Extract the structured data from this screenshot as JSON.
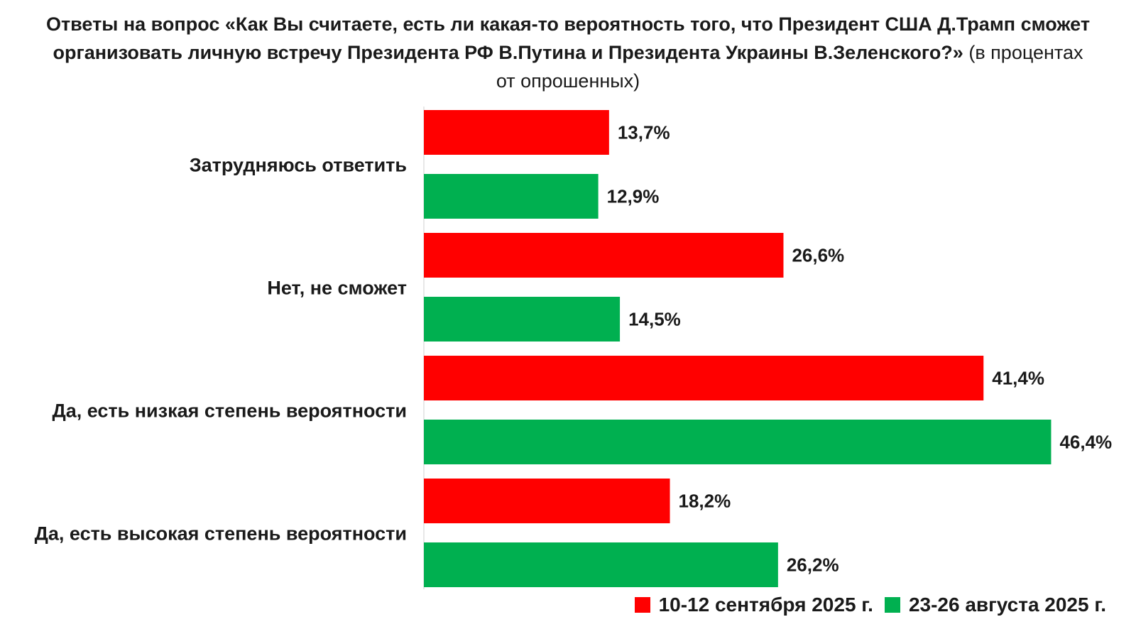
{
  "chart_data": {
    "type": "bar",
    "orientation": "horizontal",
    "title": "Ответы на вопрос «Как Вы считаете, есть ли какая-то вероятность того, что Президент США Д.Трамп сможет организовать личную встречу Президента РФ В.Путина и Президента Украины В.Зеленского?»",
    "subtitle": "(в процентах от опрошенных)",
    "categories": [
      "Затрудняюсь ответить",
      "Нет, не сможет",
      "Да, есть низкая степень вероятности",
      "Да, есть высокая степень вероятности"
    ],
    "series": [
      {
        "name": "10-12 сентября 2025 г.",
        "color": "#ff0000",
        "values": [
          13.7,
          26.6,
          41.4,
          18.2
        ],
        "labels": [
          "13,7%",
          "26,6%",
          "41,4%",
          "18,2%"
        ]
      },
      {
        "name": "23-26 августа 2025 г.",
        "color": "#00b050",
        "values": [
          12.9,
          14.5,
          46.4,
          26.2
        ],
        "labels": [
          "12,9%",
          "14,5%",
          "46,4%",
          "26,2%"
        ]
      }
    ],
    "xlim": [
      0,
      50
    ],
    "grid": false,
    "legend_position": "bottom-right"
  }
}
